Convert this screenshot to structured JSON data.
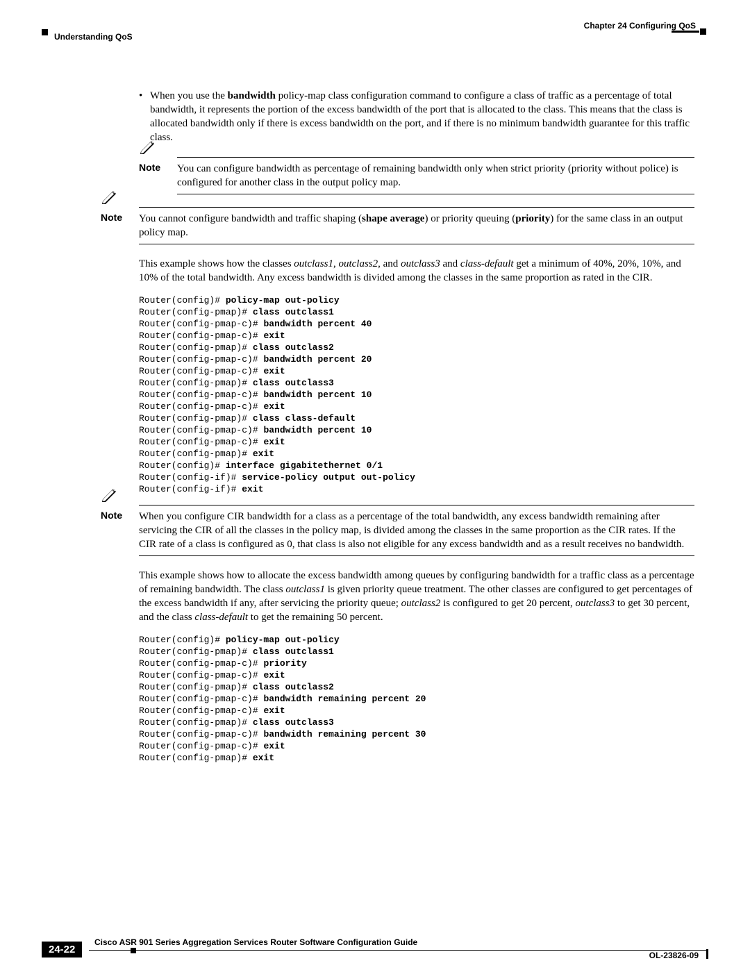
{
  "header": {
    "chapter": "Chapter 24    Configuring QoS",
    "section": "Understanding QoS"
  },
  "bullet1": {
    "pre": "When you use the ",
    "bold": "bandwidth",
    "post": " policy-map class configuration command to configure a class of traffic as a percentage of total bandwidth, it represents the portion of the excess bandwidth of the port that is allocated to the class. This means that the class is allocated bandwidth only if there is excess bandwidth on the port, and if there is no minimum bandwidth guarantee for this traffic class."
  },
  "note1": {
    "label": "Note",
    "text": "You can configure bandwidth as percentage of remaining bandwidth only when strict priority (priority without police) is configured for another class in the output policy map."
  },
  "note2": {
    "label": "Note",
    "p1": "You cannot configure bandwidth and traffic shaping (",
    "b1": "shape average",
    "p2": ") or priority queuing (",
    "b2": "priority",
    "p3": ") for the same class in an output policy map."
  },
  "para1": {
    "p1": "This example shows how the classes ",
    "i1": "outclass1",
    "p2": ", ",
    "i2": "outclass2",
    "p3": ", and ",
    "i3": "outclass3",
    "p4": " and ",
    "i4": "class-default",
    "p5": " get a minimum of 40%, 20%, 10%, and 10% of the total bandwidth. Any excess bandwidth is divided among the classes in the same proportion as rated in the CIR."
  },
  "code1": [
    {
      "p": "Router(config)# ",
      "c": "policy-map out-policy"
    },
    {
      "p": "Router(config-pmap)# ",
      "c": "class outclass1"
    },
    {
      "p": "Router(config-pmap-c)# ",
      "c": "bandwidth percent 40"
    },
    {
      "p": "Router(config-pmap-c)# ",
      "c": "exit"
    },
    {
      "p": "Router(config-pmap)# ",
      "c": "class outclass2"
    },
    {
      "p": "Router(config-pmap-c)# ",
      "c": "bandwidth percent 20"
    },
    {
      "p": "Router(config-pmap-c)# ",
      "c": "exit"
    },
    {
      "p": "Router(config-pmap)# ",
      "c": "class outclass3"
    },
    {
      "p": "Router(config-pmap-c)# ",
      "c": "bandwidth percent 10"
    },
    {
      "p": "Router(config-pmap-c)# ",
      "c": "exit"
    },
    {
      "p": "Router(config-pmap)# ",
      "c": "class class-default"
    },
    {
      "p": "Router(config-pmap-c)# ",
      "c": "bandwidth percent 10"
    },
    {
      "p": "Router(config-pmap-c)# ",
      "c": "exit"
    },
    {
      "p": "Router(config-pmap)# ",
      "c": "exit"
    },
    {
      "p": "Router(config)# ",
      "c": "interface gigabitethernet 0/1"
    },
    {
      "p": "Router(config-if)# ",
      "c": "service-policy output out-policy"
    },
    {
      "p": "Router(config-if)# ",
      "c": "exit"
    }
  ],
  "note3": {
    "label": "Note",
    "text": "When you configure CIR bandwidth for a class as a percentage of the total bandwidth, any excess bandwidth remaining after servicing the CIR of all the classes in the policy map, is divided among the classes in the same proportion as the CIR rates. If the CIR rate of a class is configured as 0, that class is also not eligible for any excess bandwidth and as a result receives no bandwidth."
  },
  "para2": {
    "p1": "This example shows how to allocate the excess bandwidth among queues by configuring bandwidth for a traffic class as a percentage of remaining bandwidth. The class ",
    "i1": "outclass1",
    "p2": " is given priority queue treatment. The other classes are configured to get percentages of the excess bandwidth if any, after servicing the priority queue; ",
    "i2": "outclass2",
    "p3": " is configured to get 20 percent, ",
    "i3": "outclass3",
    "p4": " to get 30 percent, and the class ",
    "i4": "class-default",
    "p5": " to get the remaining 50 percent."
  },
  "code2": [
    {
      "p": "Router(config)# ",
      "c": "policy-map out-policy"
    },
    {
      "p": "Router(config-pmap)# ",
      "c": "class outclass1"
    },
    {
      "p": "Router(config-pmap-c)# ",
      "c": "priority"
    },
    {
      "p": "Router(config-pmap-c)# ",
      "c": "exit"
    },
    {
      "p": "Router(config-pmap)# ",
      "c": "class outclass2"
    },
    {
      "p": "Router(config-pmap-c)# ",
      "c": "bandwidth remaining percent 20"
    },
    {
      "p": "Router(config-pmap-c)# ",
      "c": "exit"
    },
    {
      "p": "Router(config-pmap)# ",
      "c": "class outclass3"
    },
    {
      "p": "Router(config-pmap-c)# ",
      "c": "bandwidth remaining percent 30"
    },
    {
      "p": "Router(config-pmap-c)# ",
      "c": "exit"
    },
    {
      "p": "Router(config-pmap)# ",
      "c": "exit"
    }
  ],
  "footer": {
    "title": "Cisco ASR 901 Series Aggregation Services Router Software Configuration Guide",
    "page": "24-22",
    "doc": "OL-23826-09"
  }
}
